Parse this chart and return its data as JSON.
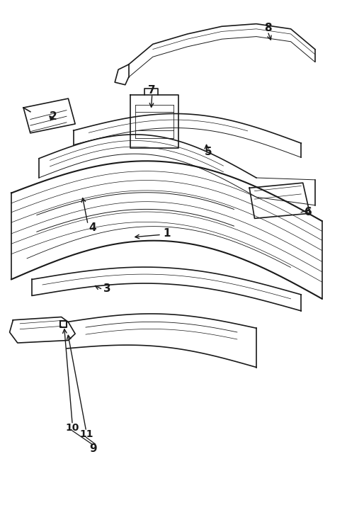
{
  "bg_color": "#ffffff",
  "line_color": "#1a1a1a",
  "label_fontsize": 11,
  "label_fontweight": "bold"
}
